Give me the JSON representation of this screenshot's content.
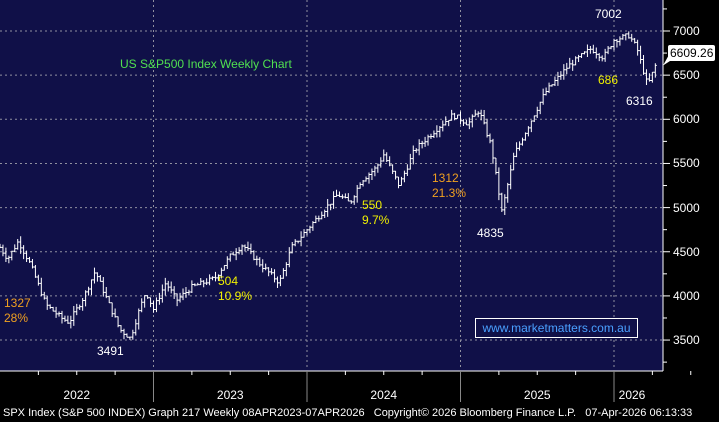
{
  "chart_data": {
    "type": "ohlc",
    "title": "US S&P500 Index Weekly Chart",
    "ylim": [
      3200,
      7400
    ],
    "yticks": [
      3500,
      4000,
      4500,
      5000,
      5500,
      6000,
      6500,
      7000
    ],
    "xticks": [
      "2022",
      "2023",
      "2024",
      "2025",
      "2026"
    ],
    "xlim": [
      2022.0,
      2026.4
    ],
    "last_price": "6609.26",
    "keypoints": [
      [
        2022.0,
        4550
      ],
      [
        2022.05,
        4420
      ],
      [
        2022.12,
        4620
      ],
      [
        2022.2,
        4350
      ],
      [
        2022.3,
        3900
      ],
      [
        2022.4,
        3750
      ],
      [
        2022.45,
        3700
      ],
      [
        2022.55,
        4000
      ],
      [
        2022.62,
        4280
      ],
      [
        2022.7,
        3950
      ],
      [
        2022.78,
        3620
      ],
      [
        2022.85,
        3520
      ],
      [
        2022.9,
        3800
      ],
      [
        2022.95,
        4050
      ],
      [
        2023.0,
        3850
      ],
      [
        2023.08,
        4150
      ],
      [
        2023.15,
        3950
      ],
      [
        2023.25,
        4100
      ],
      [
        2023.4,
        4200
      ],
      [
        2023.5,
        4450
      ],
      [
        2023.58,
        4580
      ],
      [
        2023.7,
        4350
      ],
      [
        2023.82,
        4150
      ],
      [
        2023.9,
        4550
      ],
      [
        2024.0,
        4750
      ],
      [
        2024.2,
        5150
      ],
      [
        2024.28,
        5050
      ],
      [
        2024.35,
        5300
      ],
      [
        2024.45,
        5450
      ],
      [
        2024.5,
        5600
      ],
      [
        2024.6,
        5250
      ],
      [
        2024.7,
        5650
      ],
      [
        2024.85,
        5900
      ],
      [
        2024.95,
        6050
      ],
      [
        2025.05,
        5950
      ],
      [
        2025.12,
        6100
      ],
      [
        2025.2,
        5700
      ],
      [
        2025.27,
        4950
      ],
      [
        2025.35,
        5600
      ],
      [
        2025.45,
        5950
      ],
      [
        2025.55,
        6300
      ],
      [
        2025.7,
        6600
      ],
      [
        2025.85,
        6800
      ],
      [
        2025.93,
        6700
      ],
      [
        2026.0,
        6900
      ],
      [
        2026.1,
        6950
      ],
      [
        2026.15,
        6800
      ],
      [
        2026.22,
        6380
      ],
      [
        2026.27,
        6609
      ]
    ],
    "annotations": [
      {
        "text": "1327",
        "sub": "28%",
        "color": "orange"
      },
      {
        "text": "3491"
      },
      {
        "text": "504",
        "sub": "10.9%",
        "color": "yellow"
      },
      {
        "text": "550",
        "sub": "9.7%",
        "color": "yellow"
      },
      {
        "text": "1312",
        "sub": "21.3%",
        "color": "orange"
      },
      {
        "text": "4835"
      },
      {
        "text": "7002"
      },
      {
        "text": "686",
        "color": "yellow"
      },
      {
        "text": "6316"
      }
    ]
  },
  "watermark": "www.marketmatters.com.au",
  "footer": "SPX Index (S&P 500 INDEX) Graph 217 Weekly 08APR2023-07APR2026   Copyright© 2026 Bloomberg Finance L.P.   07-Apr-2026 06:13:33",
  "colors": {
    "background": "#101048",
    "bars": "#ffffff",
    "title": "#50e050"
  }
}
